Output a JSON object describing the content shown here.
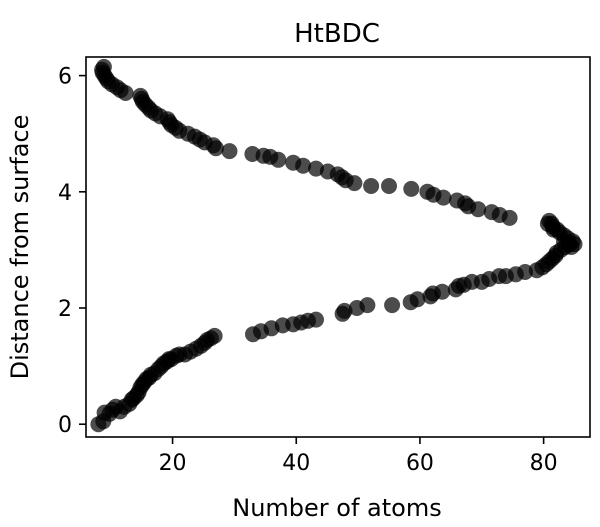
{
  "chart_data": {
    "type": "scatter",
    "title": "HtBDC",
    "xlabel": "Number of atoms",
    "ylabel": "Distance from surface",
    "xlim": [
      6,
      87.5
    ],
    "ylim": [
      -0.22,
      6.32
    ],
    "xticks": [
      20,
      40,
      60,
      80
    ],
    "yticks": [
      0,
      2,
      4,
      6
    ],
    "grid": false,
    "marker_color": "#000000",
    "marker_opacity": 0.7,
    "x": [
      8.0,
      8.8,
      9.0,
      9.8,
      10.3,
      10.8,
      11.5,
      12.2,
      13.0,
      13.4,
      13.7,
      14.2,
      14.5,
      14.8,
      15.1,
      15.4,
      15.8,
      16.2,
      16.5,
      17.1,
      17.7,
      18.2,
      18.6,
      19.1,
      19.4,
      19.8,
      20.6,
      21.1,
      22.0,
      22.9,
      23.8,
      24.6,
      25.2,
      25.6,
      26.2,
      26.8,
      33.0,
      34.3,
      36.0,
      37.8,
      39.5,
      40.8,
      41.9,
      43.2,
      47.5,
      47.8,
      49.8,
      51.5,
      55.5,
      58.5,
      59.6,
      61.7,
      62.1,
      63.6,
      65.8,
      66.3,
      67.1,
      68.4,
      70.0,
      71.2,
      72.8,
      73.9,
      75.5,
      77.0,
      78.9,
      79.8,
      80.4,
      80.9,
      81.4,
      81.9,
      82.1,
      82.8,
      83.5,
      84.1,
      84.5,
      85.0,
      84.7,
      84.2,
      83.9,
      83.3,
      83.3,
      82.6,
      82.2,
      81.6,
      81.5,
      81.3,
      80.9,
      80.7,
      74.5,
      72.9,
      71.6,
      69.4,
      67.8,
      67.3,
      66.0,
      63.8,
      62.2,
      61.2,
      58.6,
      55.0,
      52.1,
      49.4,
      48.0,
      47.4,
      46.7,
      45.1,
      43.2,
      41.1,
      39.5,
      37.1,
      35.8,
      34.7,
      32.9,
      29.2,
      27.0,
      26.6,
      25.2,
      24.4,
      23.6,
      22.5,
      21.1,
      20.5,
      19.8,
      19.5,
      19.2,
      18.0,
      17.2,
      16.5,
      16.1,
      15.6,
      15.2,
      15.0,
      14.8,
      12.4,
      11.6,
      11.0,
      10.2,
      9.6,
      9.3,
      9.0,
      8.7,
      8.6,
      8.9
    ],
    "y": [
      0.0,
      0.05,
      0.2,
      0.18,
      0.25,
      0.3,
      0.22,
      0.3,
      0.35,
      0.42,
      0.45,
      0.5,
      0.55,
      0.63,
      0.68,
      0.72,
      0.78,
      0.8,
      0.85,
      0.88,
      0.95,
      1.0,
      1.05,
      1.08,
      1.12,
      1.12,
      1.18,
      1.2,
      1.2,
      1.25,
      1.3,
      1.35,
      1.4,
      1.45,
      1.48,
      1.52,
      1.55,
      1.6,
      1.65,
      1.7,
      1.72,
      1.75,
      1.78,
      1.8,
      1.9,
      1.95,
      2.0,
      2.05,
      2.05,
      2.1,
      2.15,
      2.2,
      2.25,
      2.28,
      2.32,
      2.38,
      2.4,
      2.45,
      2.45,
      2.5,
      2.55,
      2.55,
      2.58,
      2.62,
      2.65,
      2.7,
      2.75,
      2.8,
      2.85,
      2.9,
      2.95,
      3.0,
      3.05,
      3.1,
      3.05,
      3.1,
      3.15,
      3.1,
      3.2,
      3.15,
      3.25,
      3.3,
      3.35,
      3.35,
      3.4,
      3.45,
      3.5,
      3.45,
      3.55,
      3.6,
      3.65,
      3.7,
      3.75,
      3.8,
      3.85,
      3.9,
      3.95,
      4.0,
      4.05,
      4.1,
      4.1,
      4.15,
      4.2,
      4.25,
      4.3,
      4.35,
      4.4,
      4.45,
      4.5,
      4.55,
      4.6,
      4.62,
      4.65,
      4.7,
      4.75,
      4.8,
      4.85,
      4.9,
      4.95,
      5.0,
      5.05,
      5.1,
      5.15,
      5.2,
      5.25,
      5.3,
      5.35,
      5.4,
      5.45,
      5.5,
      5.55,
      5.6,
      5.65,
      5.7,
      5.75,
      5.8,
      5.85,
      5.9,
      5.95,
      6.0,
      6.05,
      6.1,
      6.15
    ]
  }
}
